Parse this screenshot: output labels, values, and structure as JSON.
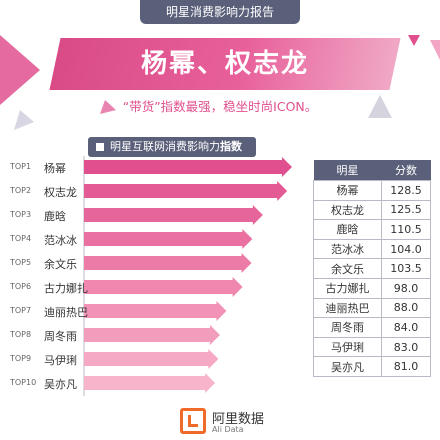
{
  "header": {
    "tab_title": "明星消费影响力报告"
  },
  "banner": {
    "title": "杨幂、权志龙",
    "subtitle": "“带货”指数最强，稳坐时尚ICON。"
  },
  "section": {
    "title_part1": "明星互联网",
    "title_part2": "消费影响力",
    "title_part3": "指数"
  },
  "table": {
    "col_star": "明星",
    "col_score": "分数"
  },
  "logo": {
    "name": "阿里数据",
    "sub": "Ali Data"
  },
  "colors": {
    "accent": "#e0508e",
    "header_bg": "#5a5f7a",
    "logo": "#f06a2a"
  },
  "chart_data": {
    "type": "bar",
    "orientation": "horizontal",
    "title": "明星互联网消费影响力指数",
    "ranks": [
      "TOP1",
      "TOP2",
      "TOP3",
      "TOP4",
      "TOP5",
      "TOP6",
      "TOP7",
      "TOP8",
      "TOP9",
      "TOP10"
    ],
    "categories": [
      "杨幂",
      "权志龙",
      "鹿晗",
      "范冰冰",
      "余文乐",
      "古力娜扎",
      "迪丽热巴",
      "周冬雨",
      "马伊琍",
      "吴亦凡"
    ],
    "values": [
      128.5,
      125.5,
      110.5,
      104.0,
      103.5,
      98.0,
      88.0,
      84.0,
      83.0,
      81.0
    ],
    "values_display": [
      "128.5",
      "125.5",
      "110.5",
      "104.0",
      "103.5",
      "98.0",
      "88.0",
      "84.0",
      "83.0",
      "81.0"
    ],
    "colors": [
      "#e0508e",
      "#e35a94",
      "#e6659a",
      "#e970a1",
      "#ec7ba8",
      "#ef87af",
      "#f192b6",
      "#f39dbd",
      "#f5a9c4",
      "#f7b4cb"
    ]
  }
}
